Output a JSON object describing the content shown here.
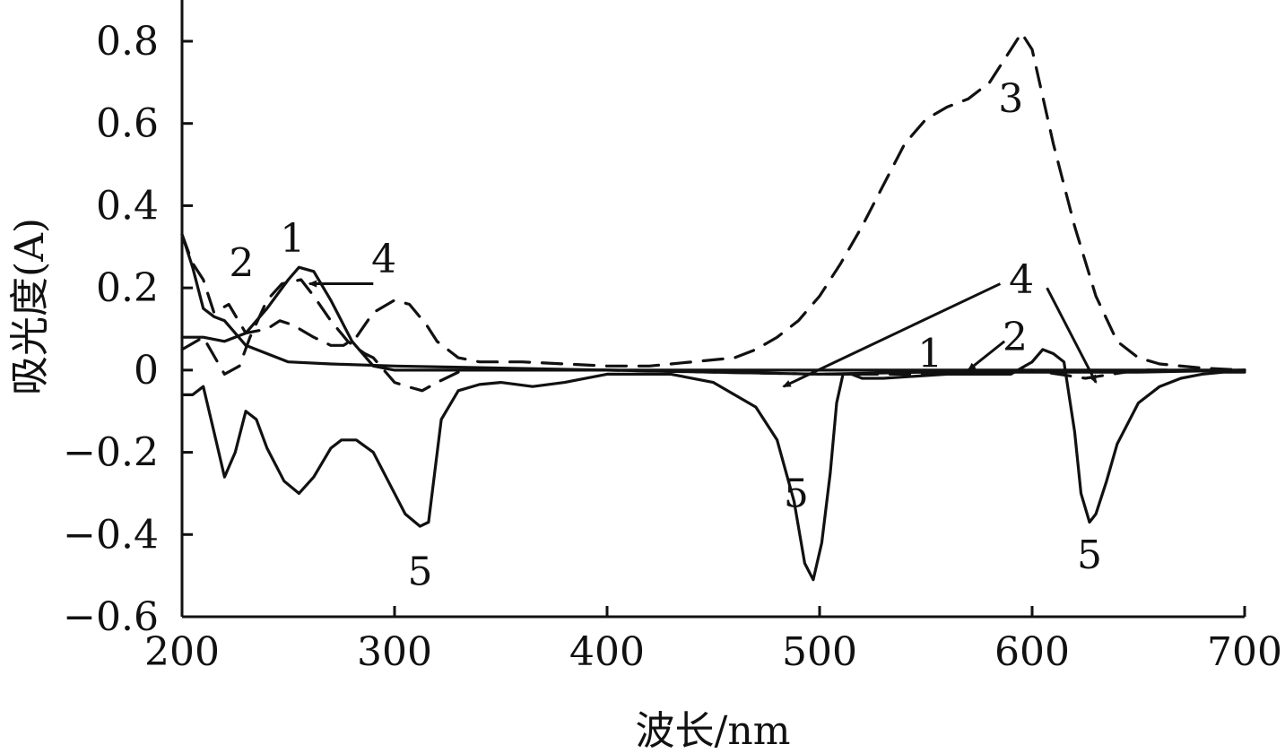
{
  "chart_data": {
    "type": "line",
    "xlabel": "波长/nm",
    "ylabel": "吸光度(A)",
    "xlim": [
      200,
      700
    ],
    "ylim": [
      -0.6,
      0.9
    ],
    "xticks": [
      200,
      300,
      400,
      500,
      600,
      700
    ],
    "xtick_labels": [
      "200",
      "300",
      "400",
      "500",
      "600",
      "700"
    ],
    "yticks": [
      0.8,
      0.6,
      0.4,
      0.2,
      0,
      -0.2,
      -0.4,
      -0.6
    ],
    "ytick_labels": [
      "0.8",
      "0.6",
      "0.4",
      "0.2",
      "0",
      "−0.2",
      "−0.4",
      "−0.6"
    ],
    "grid": false,
    "series": [
      {
        "name": "1",
        "style": "solid",
        "x": [
          200,
          210,
          220,
          230,
          240,
          250,
          255,
          262,
          270,
          280,
          290,
          300,
          320,
          350,
          400,
          450,
          500,
          550,
          600,
          650,
          700
        ],
        "y": [
          0.08,
          0.08,
          0.07,
          0.09,
          0.15,
          0.22,
          0.25,
          0.24,
          0.17,
          0.07,
          0.01,
          0.0,
          0.0,
          0.0,
          0.0,
          -0.005,
          -0.01,
          -0.005,
          -0.005,
          -0.005,
          0.0
        ]
      },
      {
        "name": "2",
        "style": "dash",
        "x": [
          200,
          210,
          220,
          227,
          232,
          240,
          247,
          256,
          262,
          270,
          278,
          286,
          290,
          300,
          306,
          313,
          320,
          332,
          345,
          400,
          500,
          570,
          600,
          625,
          650,
          700
        ],
        "y": [
          0.05,
          0.08,
          -0.01,
          0.01,
          0.08,
          0.17,
          0.21,
          0.22,
          0.18,
          0.12,
          0.07,
          0.04,
          0.03,
          -0.03,
          -0.04,
          -0.05,
          -0.03,
          0.0,
          0.0,
          0.0,
          -0.01,
          -0.01,
          0.0,
          -0.02,
          0.0,
          0.0
        ]
      },
      {
        "name": "3",
        "style": "dash",
        "x": [
          200,
          205,
          210,
          215,
          222,
          230,
          240,
          246,
          252,
          262,
          270,
          276,
          282,
          290,
          300,
          307,
          315,
          320,
          330,
          340,
          360,
          380,
          400,
          420,
          440,
          460,
          470,
          480,
          490,
          500,
          510,
          520,
          530,
          540,
          550,
          560,
          570,
          580,
          590,
          595,
          600,
          610,
          620,
          630,
          640,
          650,
          660,
          680,
          700
        ],
        "y": [
          0.33,
          0.26,
          0.22,
          0.14,
          0.16,
          0.09,
          0.1,
          0.12,
          0.11,
          0.08,
          0.06,
          0.06,
          0.08,
          0.14,
          0.17,
          0.16,
          0.11,
          0.07,
          0.03,
          0.02,
          0.02,
          0.015,
          0.01,
          0.01,
          0.02,
          0.03,
          0.05,
          0.08,
          0.12,
          0.18,
          0.26,
          0.35,
          0.45,
          0.55,
          0.61,
          0.64,
          0.66,
          0.7,
          0.78,
          0.82,
          0.78,
          0.55,
          0.35,
          0.18,
          0.07,
          0.03,
          0.015,
          0.005,
          0.0
        ]
      },
      {
        "name": "4",
        "style": "solid",
        "x": [
          200,
          205,
          210,
          215,
          220,
          230,
          250,
          270,
          300,
          350,
          400,
          450,
          500,
          550,
          600,
          650,
          700
        ],
        "y": [
          0.33,
          0.25,
          0.15,
          0.13,
          0.12,
          0.06,
          0.02,
          0.015,
          0.01,
          0.005,
          0.0,
          0.0,
          0.0,
          0.0,
          0.0,
          0.0,
          0.0
        ]
      },
      {
        "name": "5",
        "style": "solid",
        "x": [
          200,
          205,
          210,
          215,
          220,
          225,
          230,
          235,
          240,
          248,
          255,
          262,
          270,
          275,
          282,
          290,
          298,
          305,
          312,
          316,
          322,
          330,
          340,
          350,
          365,
          380,
          400,
          430,
          450,
          460,
          470,
          480,
          488,
          493,
          497,
          501,
          505,
          508,
          511,
          515,
          520,
          530,
          560,
          590,
          600,
          605,
          610,
          615,
          620,
          623,
          627,
          630,
          635,
          640,
          650,
          660,
          670,
          680,
          690,
          700
        ],
        "y": [
          -0.06,
          -0.06,
          -0.04,
          -0.15,
          -0.26,
          -0.2,
          -0.1,
          -0.12,
          -0.19,
          -0.27,
          -0.3,
          -0.26,
          -0.19,
          -0.17,
          -0.17,
          -0.2,
          -0.28,
          -0.35,
          -0.38,
          -0.37,
          -0.12,
          -0.05,
          -0.035,
          -0.03,
          -0.04,
          -0.03,
          -0.01,
          -0.01,
          -0.03,
          -0.06,
          -0.09,
          -0.17,
          -0.32,
          -0.47,
          -0.51,
          -0.42,
          -0.25,
          -0.08,
          -0.01,
          -0.01,
          -0.02,
          -0.02,
          -0.01,
          -0.01,
          0.02,
          0.05,
          0.04,
          0.02,
          -0.15,
          -0.3,
          -0.37,
          -0.35,
          -0.27,
          -0.18,
          -0.08,
          -0.04,
          -0.02,
          -0.01,
          -0.005,
          -0.005
        ]
      }
    ],
    "annotations": [
      {
        "text": "1",
        "x": 252,
        "y": 0.32
      },
      {
        "text": "2",
        "x": 228,
        "y": 0.26
      },
      {
        "text": "4",
        "x": 295,
        "y": 0.27
      },
      {
        "text": "3",
        "x": 590,
        "y": 0.66
      },
      {
        "text": "4",
        "x": 595,
        "y": 0.22
      },
      {
        "text": "2",
        "x": 592,
        "y": 0.08
      },
      {
        "text": "1",
        "x": 552,
        "y": 0.04
      },
      {
        "text": "5",
        "x": 312,
        "y": -0.49
      },
      {
        "text": "5",
        "x": 489,
        "y": -0.3
      },
      {
        "text": "5",
        "x": 627,
        "y": -0.45
      }
    ],
    "arrows": [
      {
        "label": "4",
        "from": [
          290,
          0.21
        ],
        "to": [
          260,
          0.21
        ]
      },
      {
        "label": "4",
        "from": [
          585,
          0.21
        ],
        "to": [
          483,
          -0.04
        ]
      },
      {
        "label": "4",
        "from": [
          607,
          0.2
        ],
        "to": [
          630,
          -0.03
        ]
      },
      {
        "label": "2",
        "from": [
          587,
          0.07
        ],
        "to": [
          570,
          0.0
        ]
      }
    ]
  }
}
